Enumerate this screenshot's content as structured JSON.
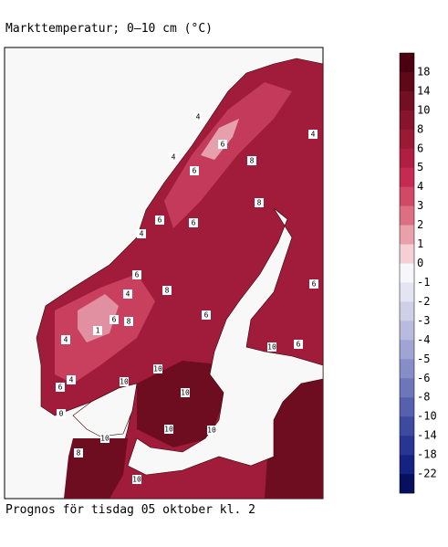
{
  "header": {
    "title": "Markttemperatur; 0–10 cm (°C)"
  },
  "footer": {
    "text": "Prognos för tisdag 05 oktober kl. 2"
  },
  "colorbar": {
    "ticks": [
      18,
      14,
      10,
      8,
      6,
      5,
      4,
      3,
      2,
      1,
      0,
      -1,
      -2,
      -3,
      -4,
      -5,
      -6,
      -8,
      -10,
      -14,
      -18,
      -22
    ],
    "colors": [
      "#4a0010",
      "#5e0818",
      "#730f22",
      "#86142c",
      "#9a1a36",
      "#b01e42",
      "#c42a52",
      "#d04a68",
      "#dc7082",
      "#e8a0aa",
      "#f4cfd3",
      "#f6f6fb",
      "#e4e4f2",
      "#cfd0e8",
      "#b8bade",
      "#a0a4d2",
      "#878dc6",
      "#6e76ba",
      "#5660ae",
      "#3e49a0",
      "#283592",
      "#162282",
      "#06105e"
    ]
  },
  "map": {
    "contour_labels": [
      4,
      6,
      4,
      6,
      8,
      6,
      4,
      6,
      8,
      4,
      6,
      8,
      6,
      6,
      8,
      4,
      4,
      6,
      6,
      10,
      10,
      10,
      10,
      10,
      10,
      10,
      8,
      0,
      1,
      4,
      6,
      10
    ]
  }
}
